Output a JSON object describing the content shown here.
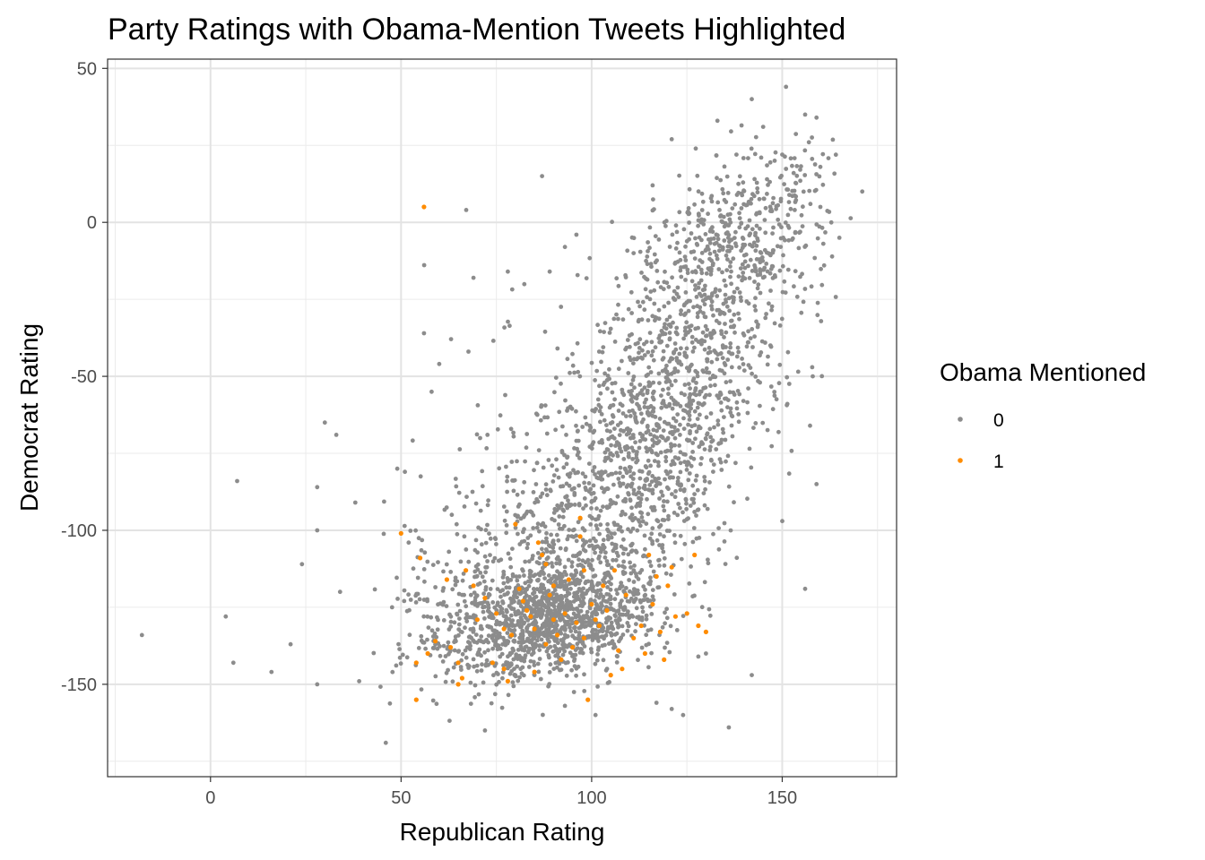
{
  "chart_data": {
    "type": "scatter",
    "title": "Party Ratings with Obama-Mention Tweets Highlighted",
    "xlabel": "Republican Rating",
    "ylabel": "Democrat Rating",
    "xlim": [
      -27,
      180
    ],
    "ylim": [
      -180,
      53
    ],
    "xticks": [
      0,
      50,
      100,
      150
    ],
    "yticks": [
      50,
      0,
      -50,
      -100,
      -150
    ],
    "grid": true,
    "legend": {
      "title": "Obama Mentioned",
      "position": "right",
      "entries": [
        {
          "label": "0",
          "color": "#8c8c8c"
        },
        {
          "label": "1",
          "color": "#ff8c00"
        }
      ]
    },
    "series": [
      {
        "name": "0",
        "color": "#8c8c8c",
        "generated_cluster": {
          "count": 3400,
          "x_range": [
            45,
            165
          ],
          "y_range": [
            -165,
            30
          ],
          "description": "dense cloud of non-mention tweets, positively correlated"
        },
        "points": [
          [
            -18,
            -134
          ],
          [
            4,
            -128
          ],
          [
            6,
            -143
          ],
          [
            7,
            -84
          ],
          [
            16,
            -146
          ],
          [
            21,
            -137
          ],
          [
            24,
            -111
          ],
          [
            28,
            -86
          ],
          [
            28,
            -100
          ],
          [
            28,
            -150
          ],
          [
            30,
            -65
          ],
          [
            33,
            -69
          ],
          [
            34,
            -120
          ],
          [
            38,
            -91
          ],
          [
            39,
            -149
          ],
          [
            46,
            -169
          ],
          [
            49,
            -80
          ],
          [
            51,
            -81
          ],
          [
            52,
            -104
          ],
          [
            56,
            -36
          ],
          [
            58,
            -55
          ],
          [
            60,
            -46
          ],
          [
            69,
            -18
          ],
          [
            78,
            -16
          ],
          [
            87,
            15
          ],
          [
            89,
            -16
          ],
          [
            93,
            -8
          ],
          [
            96,
            -4
          ],
          [
            111,
            -10
          ],
          [
            116,
            12
          ],
          [
            121,
            27
          ],
          [
            129,
            4
          ],
          [
            133,
            33
          ],
          [
            138,
            22
          ],
          [
            142,
            40
          ],
          [
            145,
            31
          ],
          [
            146,
            14
          ],
          [
            148,
            20
          ],
          [
            150,
            22
          ],
          [
            151,
            44
          ],
          [
            153,
            16
          ],
          [
            156,
            35
          ],
          [
            157,
            26
          ],
          [
            159,
            34
          ],
          [
            160,
            18
          ],
          [
            160,
            5
          ],
          [
            161,
            -14
          ],
          [
            165,
            -5
          ],
          [
            171,
            10
          ],
          [
            158,
            -50
          ],
          [
            159,
            -85
          ],
          [
            156,
            -119
          ],
          [
            150,
            -97
          ],
          [
            142,
            -147
          ],
          [
            136,
            -164
          ],
          [
            130,
            -140
          ],
          [
            128,
            -141
          ],
          [
            124,
            -160
          ],
          [
            121,
            -158
          ],
          [
            117,
            -156
          ],
          [
            101,
            -160
          ],
          [
            93,
            -157
          ],
          [
            72,
            -165
          ]
        ]
      },
      {
        "name": "1",
        "color": "#ff8c00",
        "points": [
          [
            56,
            5
          ],
          [
            50,
            -101
          ],
          [
            55,
            -109
          ],
          [
            62,
            -116
          ],
          [
            54,
            -143
          ],
          [
            54,
            -155
          ],
          [
            57,
            -140
          ],
          [
            59,
            -136
          ],
          [
            63,
            -138
          ],
          [
            65,
            -143
          ],
          [
            65,
            -150
          ],
          [
            66,
            -148
          ],
          [
            67,
            -113
          ],
          [
            69,
            -118
          ],
          [
            70,
            -129
          ],
          [
            72,
            -122
          ],
          [
            74,
            -143
          ],
          [
            75,
            -127
          ],
          [
            77,
            -132
          ],
          [
            77,
            -145
          ],
          [
            78,
            -149
          ],
          [
            79,
            -134
          ],
          [
            80,
            -98
          ],
          [
            81,
            -119
          ],
          [
            82,
            -123
          ],
          [
            83,
            -126
          ],
          [
            84,
            -128
          ],
          [
            85,
            -132
          ],
          [
            85,
            -146
          ],
          [
            86,
            -104
          ],
          [
            87,
            -108
          ],
          [
            88,
            -111
          ],
          [
            88,
            -137
          ],
          [
            89,
            -121
          ],
          [
            90,
            -118
          ],
          [
            90,
            -129
          ],
          [
            91,
            -134
          ],
          [
            92,
            -142
          ],
          [
            93,
            -127
          ],
          [
            94,
            -116
          ],
          [
            95,
            -138
          ],
          [
            96,
            -130
          ],
          [
            97,
            -96
          ],
          [
            97,
            -102
          ],
          [
            98,
            -113
          ],
          [
            98,
            -135
          ],
          [
            99,
            -155
          ],
          [
            100,
            -124
          ],
          [
            101,
            -129
          ],
          [
            102,
            -131
          ],
          [
            103,
            -118
          ],
          [
            104,
            -126
          ],
          [
            105,
            -147
          ],
          [
            106,
            -113
          ],
          [
            107,
            -139
          ],
          [
            108,
            -145
          ],
          [
            109,
            -121
          ],
          [
            111,
            -135
          ],
          [
            113,
            -131
          ],
          [
            114,
            -140
          ],
          [
            115,
            -108
          ],
          [
            116,
            -124
          ],
          [
            117,
            -115
          ],
          [
            118,
            -133
          ],
          [
            119,
            -142
          ],
          [
            120,
            -118
          ],
          [
            121,
            -112
          ],
          [
            122,
            -128
          ],
          [
            125,
            -127
          ],
          [
            127,
            -108
          ],
          [
            128,
            -131
          ],
          [
            130,
            -133
          ]
        ]
      }
    ]
  }
}
